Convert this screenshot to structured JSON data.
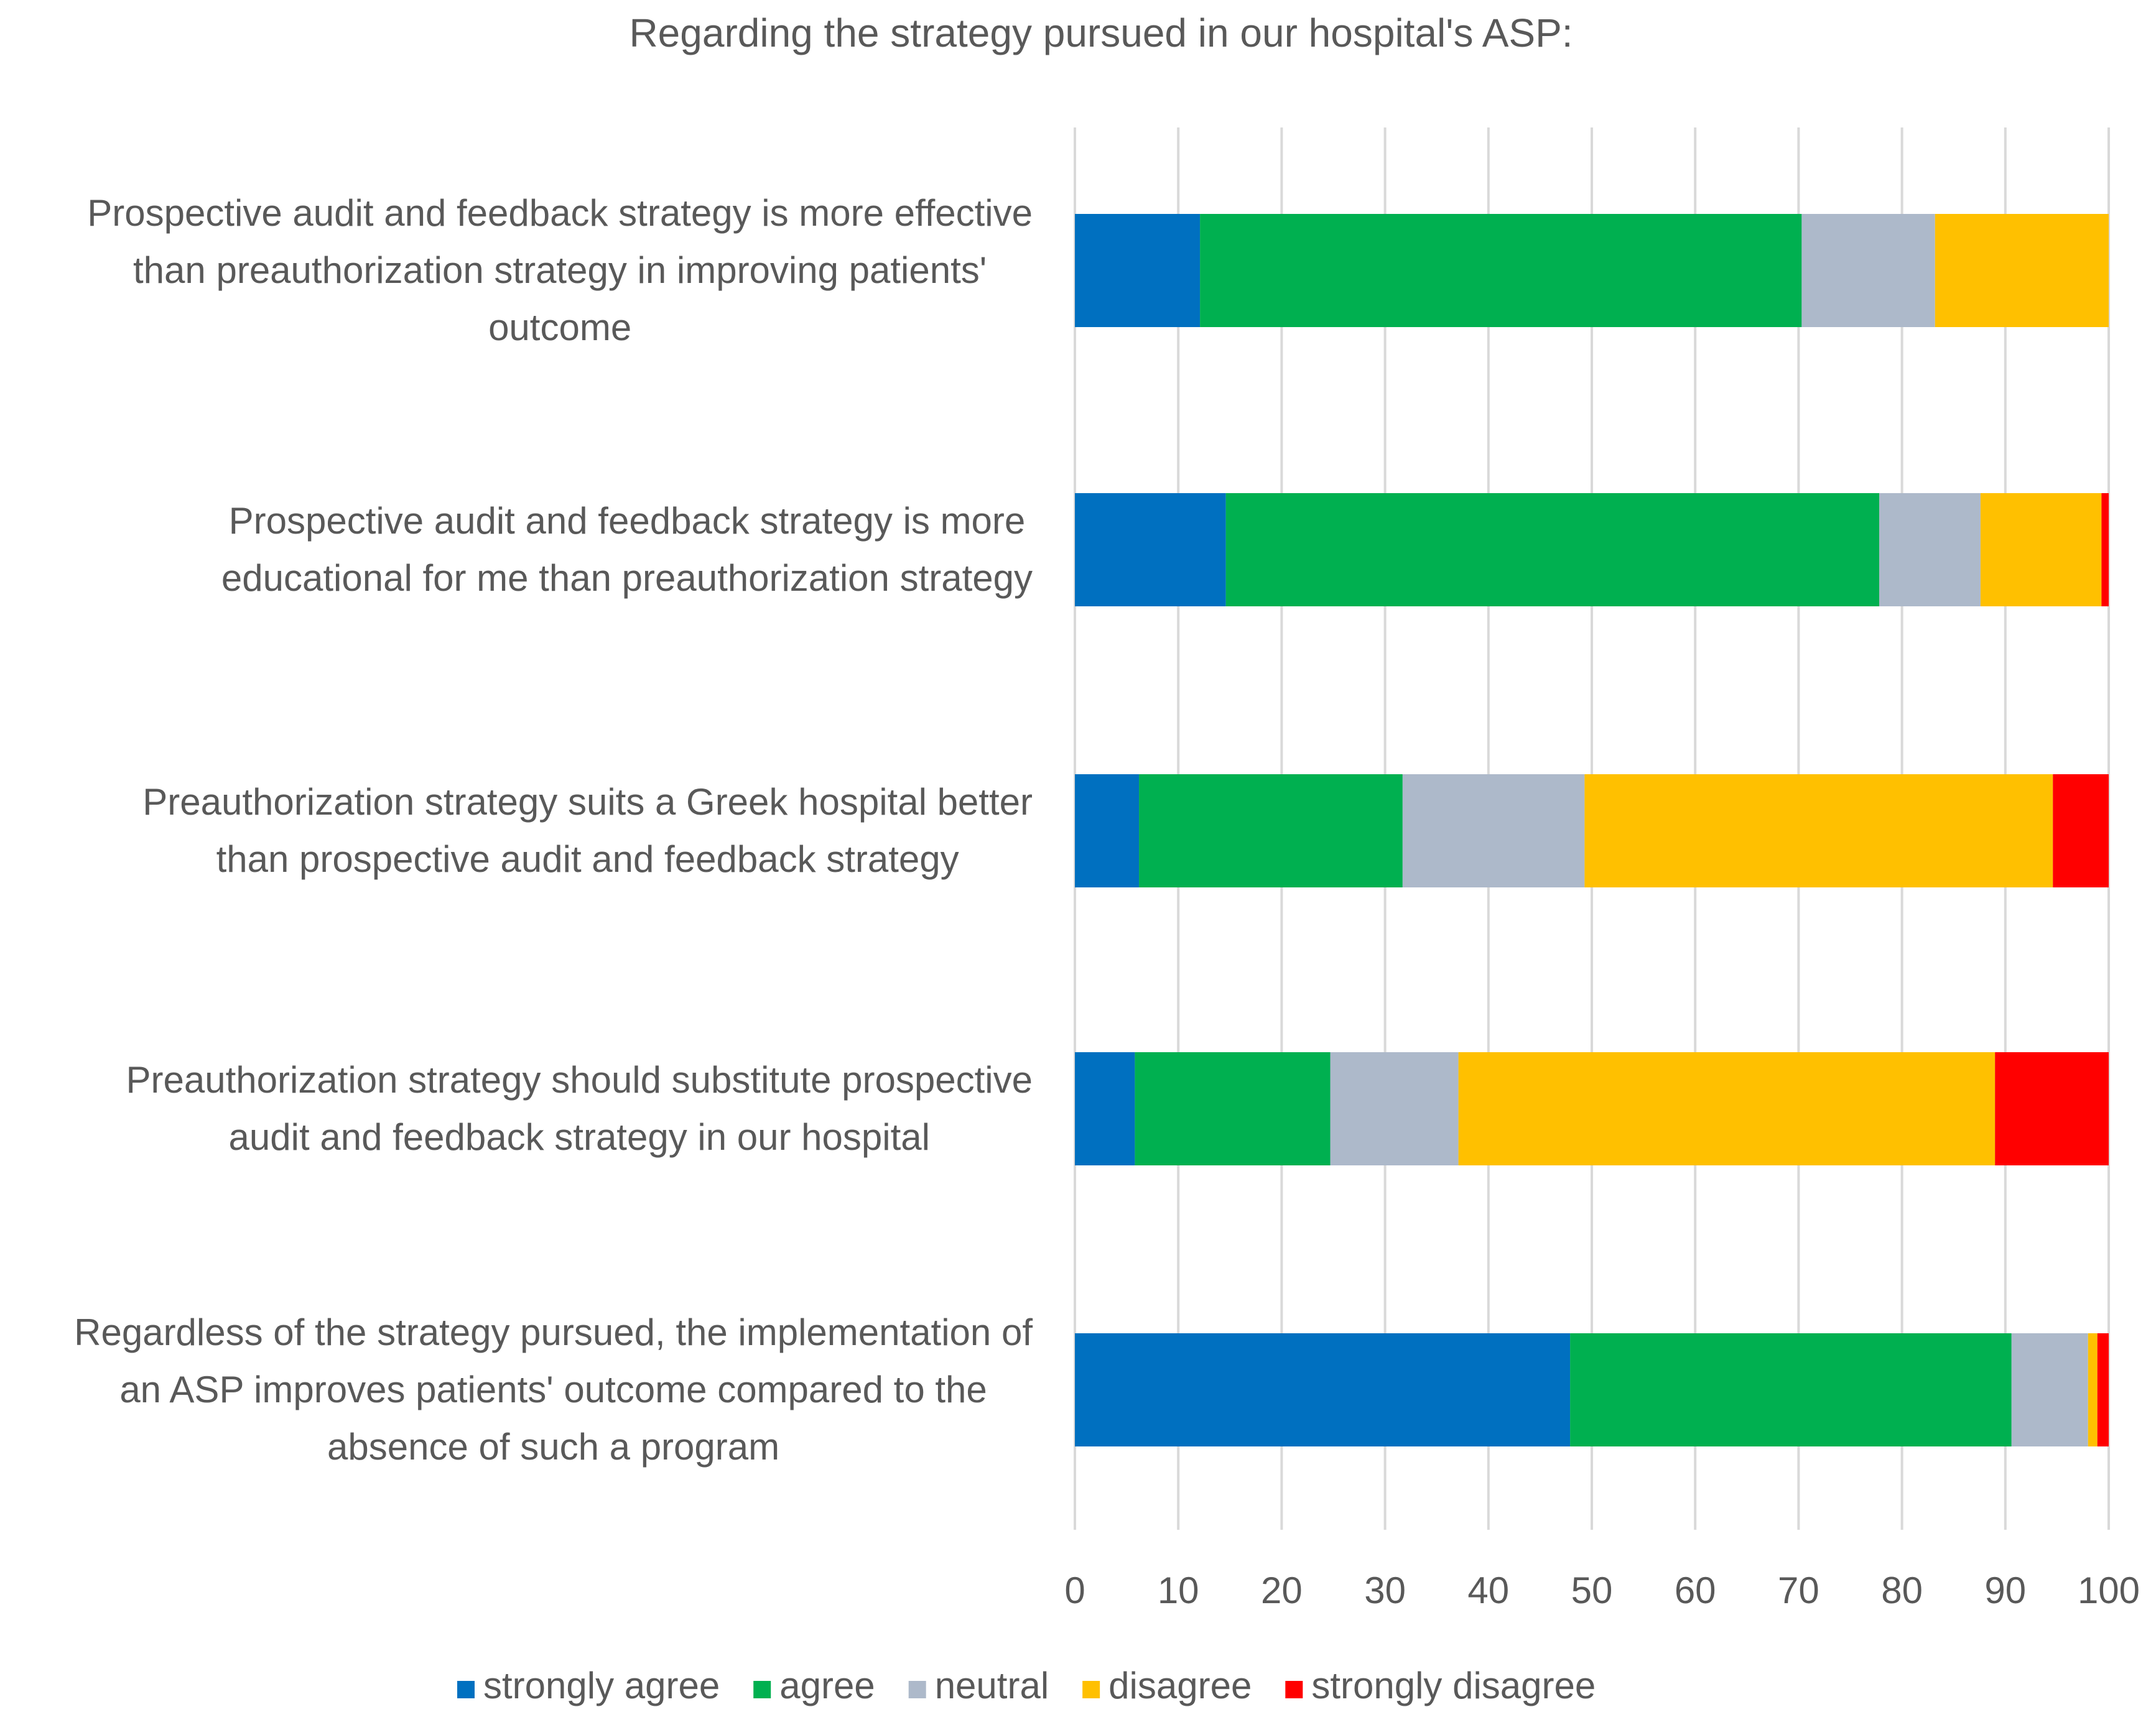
{
  "chart_data": {
    "type": "bar",
    "orientation": "horizontal",
    "stacked": true,
    "title": "Regarding the strategy pursued in our hospital's ASP:",
    "xlabel": "",
    "ylabel": "",
    "xlim": [
      0,
      100
    ],
    "xticks": [
      0,
      10,
      20,
      30,
      40,
      50,
      60,
      70,
      80,
      90,
      100
    ],
    "grid": "vertical",
    "legend_position": "bottom",
    "categories": [
      [
        "Prospective audit and feedback strategy is more effective",
        "than preauthorization strategy in improving patients'",
        "outcome"
      ],
      [
        "Prospective audit and feedback strategy is more",
        "educational for me than preauthorization strategy"
      ],
      [
        "Preauthorization strategy suits a Greek hospital better",
        "than prospective audit and feedback strategy"
      ],
      [
        "Preauthorization strategy should substitute prospective",
        "audit and feedback strategy in our hospital"
      ],
      [
        "Regardless of the strategy pursued, the implementation of",
        "an ASP improves patients' outcome compared to the",
        "absence of such a program"
      ]
    ],
    "series": [
      {
        "name": "strongly agree",
        "color": "#0070C0",
        "values": [
          12.1,
          14.6,
          6.2,
          5.8,
          47.9
        ]
      },
      {
        "name": "agree",
        "color": "#00B050",
        "values": [
          58.2,
          63.2,
          25.5,
          18.9,
          42.7
        ]
      },
      {
        "name": "neutral",
        "color": "#ADB9CA",
        "values": [
          12.9,
          9.8,
          17.6,
          12.4,
          7.4
        ]
      },
      {
        "name": "disagree",
        "color": "#FFC000",
        "values": [
          16.8,
          11.7,
          45.3,
          51.9,
          0.9
        ]
      },
      {
        "name": "strongly disagree",
        "color": "#FF0000",
        "values": [
          0.0,
          0.7,
          5.4,
          11.0,
          1.1
        ]
      }
    ]
  }
}
